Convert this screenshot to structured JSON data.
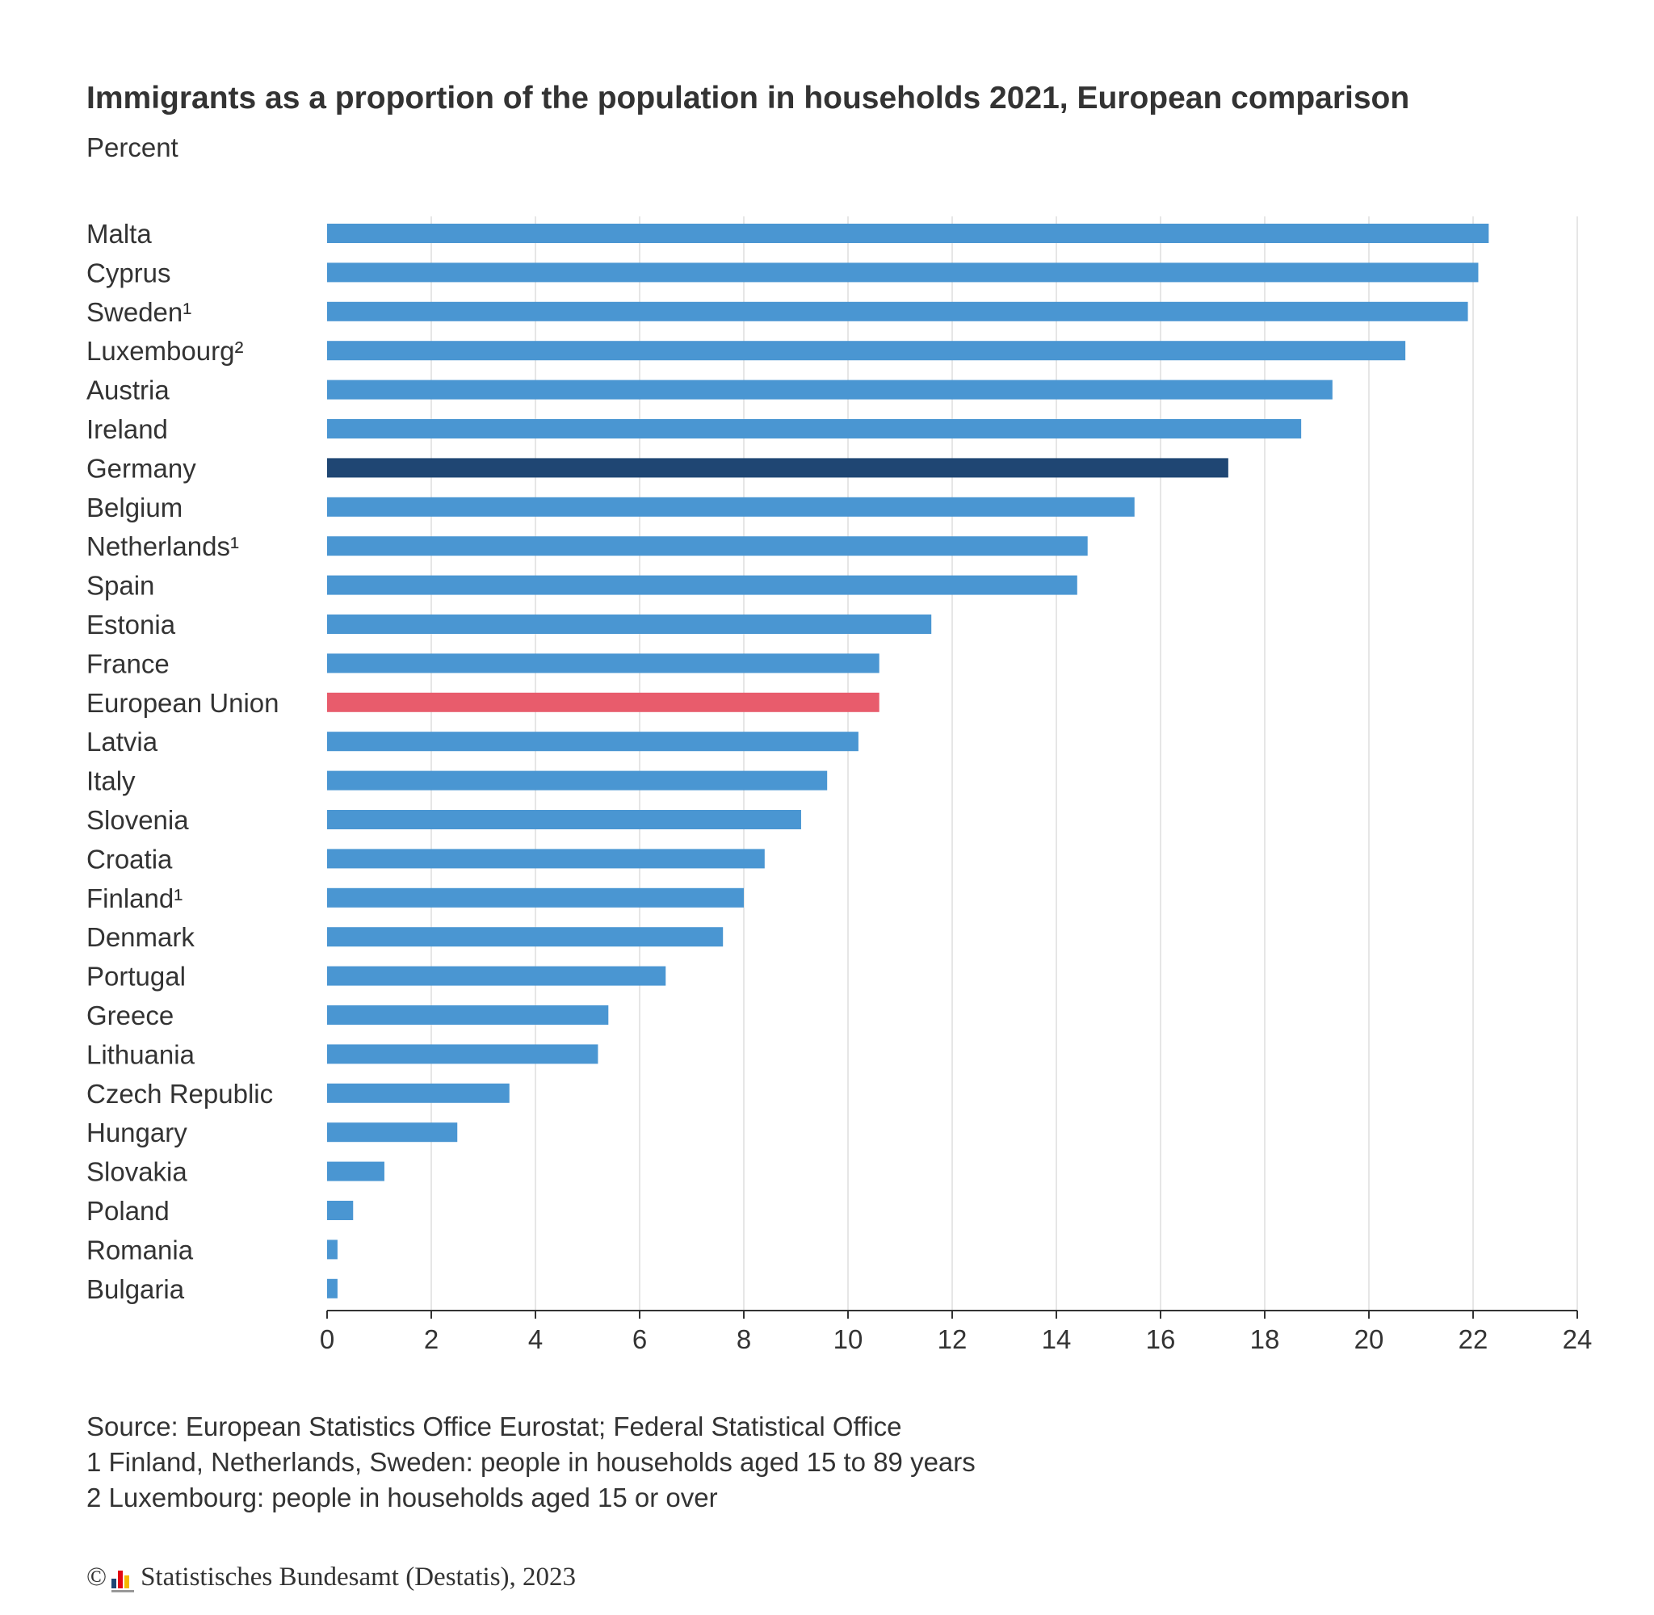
{
  "chart_data": {
    "type": "bar",
    "orientation": "horizontal",
    "title": "Immigrants as a proportion of the population in households 2021, European comparison",
    "subtitle": "Percent",
    "categories": [
      "Malta",
      "Cyprus",
      "Sweden¹",
      "Luxembourg²",
      "Austria",
      "Ireland",
      "Germany",
      "Belgium",
      "Netherlands¹",
      "Spain",
      "Estonia",
      "France",
      "European Union",
      "Latvia",
      "Italy",
      "Slovenia",
      "Croatia",
      "Finland¹",
      "Denmark",
      "Portugal",
      "Greece",
      "Lithuania",
      "Czech Republic",
      "Hungary",
      "Slovakia",
      "Poland",
      "Romania",
      "Bulgaria"
    ],
    "values": [
      22.3,
      22.1,
      21.9,
      20.7,
      19.3,
      18.7,
      17.3,
      15.5,
      14.6,
      14.4,
      11.6,
      10.6,
      10.6,
      10.2,
      9.6,
      9.1,
      8.4,
      8.0,
      7.6,
      6.5,
      5.4,
      5.2,
      3.5,
      2.5,
      1.1,
      0.5,
      0.2,
      0.2
    ],
    "xlim": [
      0,
      24
    ],
    "xticks": [
      "0",
      "2",
      "4",
      "6",
      "8",
      "10",
      "12",
      "14",
      "16",
      "18",
      "20",
      "22",
      "24"
    ],
    "grid": true,
    "colors": {
      "default": "#4a96d2",
      "highlight": "#1f4673",
      "eu": "#e85c6c",
      "grid": "#dddddd",
      "axis": "#333333"
    },
    "highlight_categories": [
      "Germany"
    ],
    "eu_categories": [
      "European Union"
    ]
  },
  "footnotes": {
    "source": "Source: European Statistics Office Eurostat; Federal Statistical Office",
    "note1": "1 Finland, Netherlands, Sweden: people in households aged 15 to 89 years",
    "note2": "2 Luxembourg: people in households aged 15 or over"
  },
  "copyright": {
    "symbol": "©",
    "text": "Statistisches Bundesamt (Destatis), 2023"
  }
}
